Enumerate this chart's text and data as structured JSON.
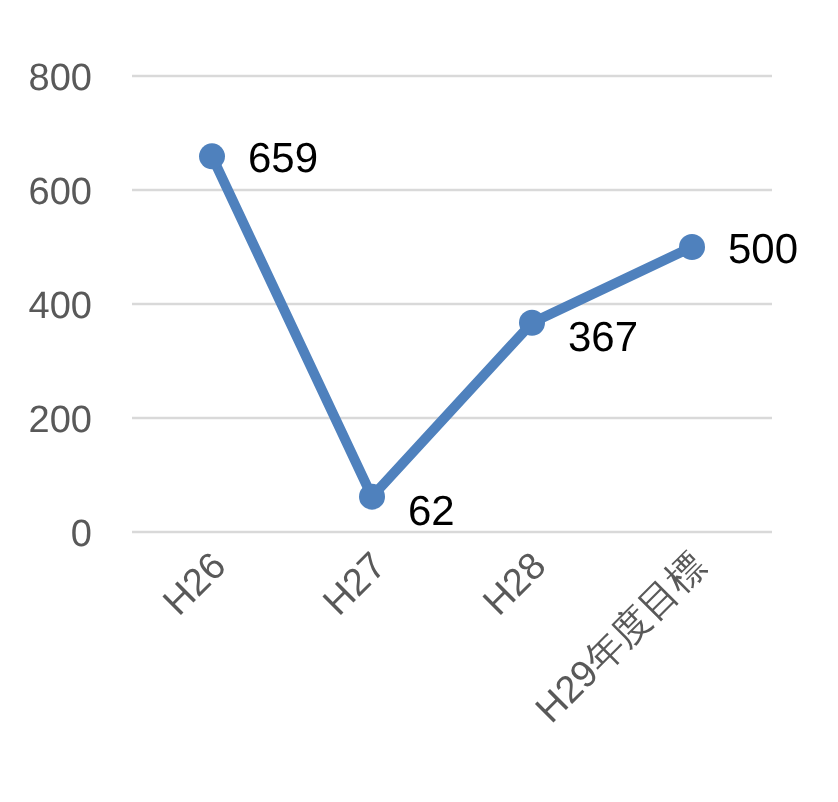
{
  "chart_data": {
    "type": "line",
    "categories": [
      "H26",
      "H27",
      "H28",
      "H29年度目標"
    ],
    "series": [
      {
        "color": "#4f81bd",
        "values": [
          659,
          62,
          367,
          500
        ]
      }
    ],
    "ylim": [
      0,
      800
    ],
    "yticks": [
      0,
      200,
      400,
      600,
      800
    ],
    "grid": "y",
    "marker": "circle",
    "line_style": "solid",
    "data_labels": true
  }
}
